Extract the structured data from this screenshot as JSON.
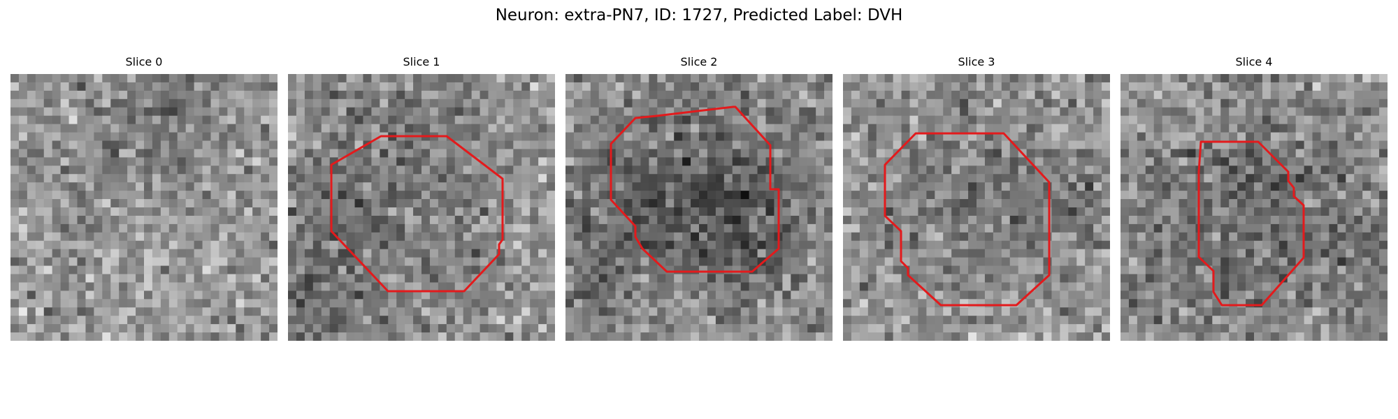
{
  "figure": {
    "title": "Neuron: extra-PN7, ID: 1727, Predicted Label: DVH",
    "colormap": "gray",
    "outline_color": "#e31a1c"
  },
  "panels": [
    {
      "title": "Slice 0",
      "has_outline": false
    },
    {
      "title": "Slice 1",
      "has_outline": true
    },
    {
      "title": "Slice 2",
      "has_outline": true
    },
    {
      "title": "Slice 3",
      "has_outline": true
    },
    {
      "title": "Slice 4",
      "has_outline": true
    }
  ]
}
